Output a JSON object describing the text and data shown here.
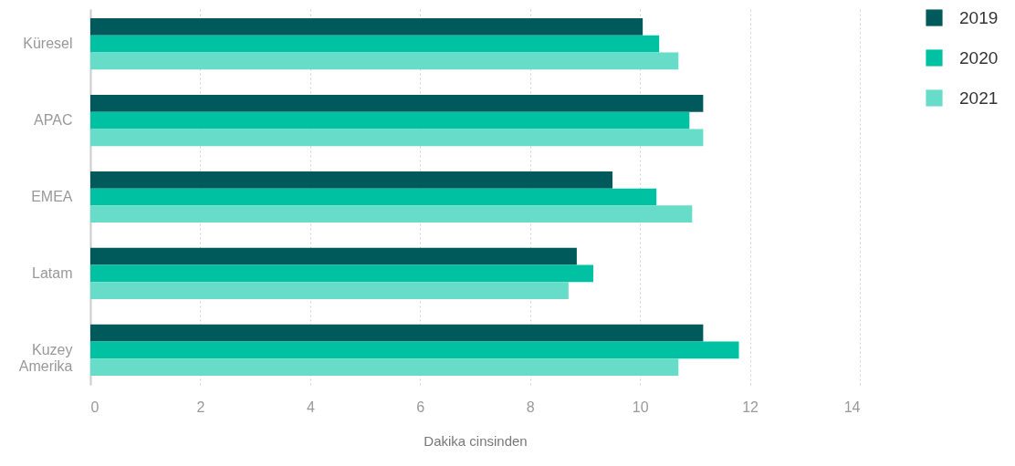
{
  "chart_data": {
    "type": "bar",
    "orientation": "horizontal",
    "xlabel": "Dakika cinsinden",
    "categories": [
      "Küresel",
      "APAC",
      "EMEA",
      "Latam",
      "Kuzey Amerika"
    ],
    "series": [
      {
        "name": "2019",
        "color": "#005a5b",
        "values": [
          10.05,
          11.15,
          9.5,
          8.85,
          11.15
        ]
      },
      {
        "name": "2020",
        "color": "#00c2a2",
        "values": [
          10.35,
          10.9,
          10.3,
          9.15,
          11.8
        ]
      },
      {
        "name": "2021",
        "color": "#66dcc9",
        "values": [
          10.7,
          11.15,
          10.95,
          8.7,
          10.7
        ]
      }
    ],
    "xlim": [
      0,
      14
    ],
    "xticks": [
      0,
      2,
      4,
      6,
      8,
      10,
      12,
      14
    ],
    "grid": "x",
    "legend": "top right"
  }
}
